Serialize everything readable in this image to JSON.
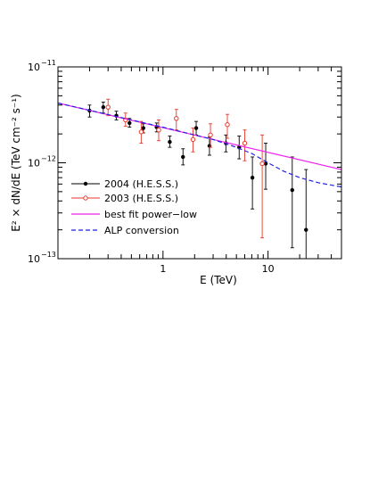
{
  "chart_data": {
    "type": "scatter",
    "x_scale": "log",
    "y_scale": "log",
    "xlim": [
      0.1,
      50
    ],
    "ylim": [
      1e-13,
      1e-11
    ],
    "xlabel": "E (TeV)",
    "ylabel": "E² × dN/dE  (TeV cm⁻² s⁻¹)",
    "x_ticklabels": [
      {
        "value": 1,
        "label": "1"
      },
      {
        "value": 10,
        "label": "10"
      }
    ],
    "y_ticklabels": [
      {
        "value": 1e-11,
        "base": "10",
        "exp": "−11"
      },
      {
        "value": 1e-12,
        "base": "10",
        "exp": "−12"
      },
      {
        "value": 1e-13,
        "base": "10",
        "exp": "−13"
      }
    ],
    "legend_position": "lower-left",
    "series": [
      {
        "name": "2004 (H.E.S.S.)",
        "kind": "points",
        "marker": "filled-circle",
        "color": "#000000",
        "points": [
          {
            "x": 0.2,
            "y": 3.5e-12,
            "ylo": 3e-12,
            "yhi": 4e-12
          },
          {
            "x": 0.27,
            "y": 3.8e-12,
            "ylo": 3.3e-12,
            "yhi": 4.3e-12
          },
          {
            "x": 0.36,
            "y": 3.1e-12,
            "ylo": 2.8e-12,
            "yhi": 3.45e-12
          },
          {
            "x": 0.48,
            "y": 2.6e-12,
            "ylo": 2.35e-12,
            "yhi": 2.9e-12
          },
          {
            "x": 0.65,
            "y": 2.3e-12,
            "ylo": 2.05e-12,
            "yhi": 2.55e-12
          },
          {
            "x": 0.87,
            "y": 2.35e-12,
            "ylo": 2.1e-12,
            "yhi": 2.6e-12
          },
          {
            "x": 1.16,
            "y": 1.65e-12,
            "ylo": 1.45e-12,
            "yhi": 1.9e-12
          },
          {
            "x": 1.55,
            "y": 1.15e-12,
            "ylo": 9.5e-13,
            "yhi": 1.4e-12
          },
          {
            "x": 2.07,
            "y": 2.3e-12,
            "ylo": 1.95e-12,
            "yhi": 2.7e-12
          },
          {
            "x": 2.77,
            "y": 1.5e-12,
            "ylo": 1.2e-12,
            "yhi": 1.85e-12
          },
          {
            "x": 3.97,
            "y": 1.6e-12,
            "ylo": 1.3e-12,
            "yhi": 1.95e-12
          },
          {
            "x": 5.31,
            "y": 1.45e-12,
            "ylo": 1.1e-12,
            "yhi": 1.9e-12
          },
          {
            "x": 7.1,
            "y": 7e-13,
            "ylo": 3.3e-13,
            "yhi": 1.15e-12
          },
          {
            "x": 9.5,
            "y": 9.8e-13,
            "ylo": 5.3e-13,
            "yhi": 1.6e-12
          },
          {
            "x": 17.0,
            "y": 5.2e-13,
            "ylo": 1.3e-13,
            "yhi": 1.15e-12
          },
          {
            "x": 23.0,
            "y": 2e-13,
            "ylo": 1e-13,
            "yhi": 8.5e-13
          }
        ]
      },
      {
        "name": "2003 (H.E.S.S.)",
        "kind": "points",
        "marker": "open-circle",
        "color": "#e8392a",
        "points": [
          {
            "x": 0.3,
            "y": 3.8e-12,
            "ylo": 3.1e-12,
            "yhi": 4.6e-12
          },
          {
            "x": 0.44,
            "y": 2.8e-12,
            "ylo": 2.4e-12,
            "yhi": 3.3e-12
          },
          {
            "x": 0.62,
            "y": 2.1e-12,
            "ylo": 1.6e-12,
            "yhi": 2.7e-12
          },
          {
            "x": 0.91,
            "y": 2.2e-12,
            "ylo": 1.7e-12,
            "yhi": 2.8e-12
          },
          {
            "x": 1.34,
            "y": 2.9e-12,
            "ylo": 2.2e-12,
            "yhi": 3.6e-12
          },
          {
            "x": 1.93,
            "y": 1.75e-12,
            "ylo": 1.3e-12,
            "yhi": 2.3e-12
          },
          {
            "x": 2.83,
            "y": 1.95e-12,
            "ylo": 1.45e-12,
            "yhi": 2.55e-12
          },
          {
            "x": 4.1,
            "y": 2.5e-12,
            "ylo": 1.8e-12,
            "yhi": 3.2e-12
          },
          {
            "x": 6.0,
            "y": 1.6e-12,
            "ylo": 1.05e-12,
            "yhi": 2.2e-12
          },
          {
            "x": 8.8,
            "y": 9.8e-13,
            "ylo": 1.65e-13,
            "yhi": 1.95e-12
          }
        ]
      },
      {
        "name": "best fit power−low",
        "kind": "line",
        "style": "solid",
        "color": "#ee22ee",
        "points": [
          {
            "x": 0.1,
            "y": 4.2e-12
          },
          {
            "x": 50,
            "y": 8.5e-13
          }
        ]
      },
      {
        "name": "ALP conversion",
        "kind": "line",
        "style": "dashed",
        "color": "#2323dd",
        "points": [
          {
            "x": 0.1,
            "y": 4.2e-12
          },
          {
            "x": 1.0,
            "y": 2.35e-12
          },
          {
            "x": 3.0,
            "y": 1.75e-12
          },
          {
            "x": 5.0,
            "y": 1.45e-12
          },
          {
            "x": 7.0,
            "y": 1.25e-12
          },
          {
            "x": 10.0,
            "y": 1e-12
          },
          {
            "x": 14.0,
            "y": 8.2e-13
          },
          {
            "x": 20.0,
            "y": 7e-13
          },
          {
            "x": 30.0,
            "y": 6.2e-13
          },
          {
            "x": 50.0,
            "y": 5.6e-13
          }
        ]
      }
    ]
  }
}
